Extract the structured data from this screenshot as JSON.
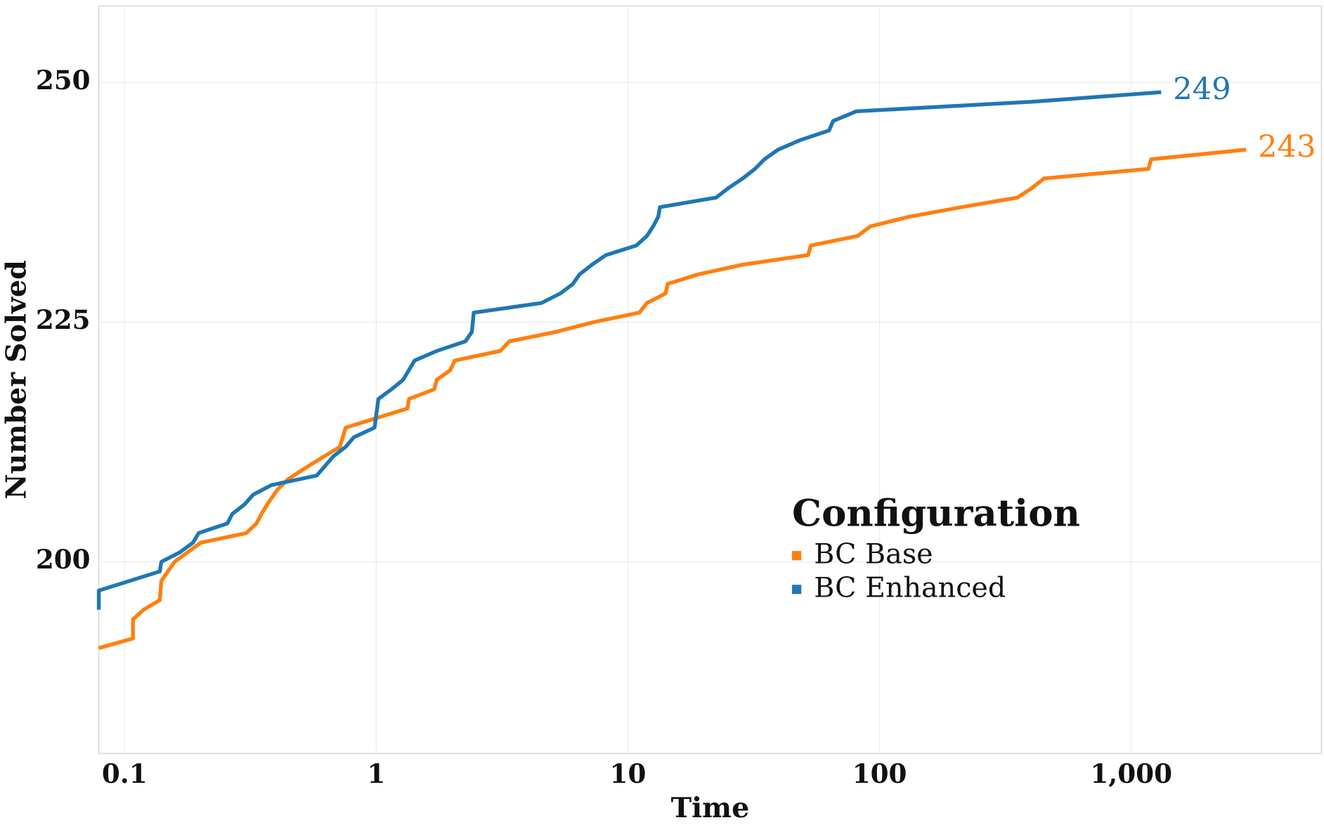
{
  "chart_data": {
    "type": "line",
    "x_label": "Time",
    "y_label": "Number Solved",
    "log_x": true,
    "grid": true,
    "xlim": [
      0.079,
      5700
    ],
    "ylim": [
      180,
      258
    ],
    "xticks": [
      0.1,
      1,
      10,
      100,
      {
        "value": 1000,
        "label": "1,000"
      }
    ],
    "yticks": [
      200,
      225,
      250
    ],
    "legend": {
      "title": "Configuration",
      "position": "right"
    },
    "end_labels": true,
    "series": [
      {
        "name": "BC Base",
        "color": "#ff7f0e",
        "x": [
          0.079,
          0.108,
          0.108,
          0.119,
          0.138,
          0.14,
          0.158,
          0.201,
          0.305,
          0.334,
          0.35,
          0.369,
          0.404,
          0.445,
          0.538,
          0.717,
          0.756,
          1.33,
          1.35,
          1.7,
          1.74,
          1.97,
          2.05,
          3.11,
          3.38,
          5.2,
          7.3,
          11.1,
          11.9,
          14.1,
          14.4,
          19.1,
          28.6,
          52,
          53.3,
          81.9,
          91.9,
          131,
          211,
          353,
          403,
          451,
          1170,
          1200,
          2860
        ],
        "values": [
          191,
          192,
          194,
          195,
          196,
          198,
          200,
          202,
          203,
          204,
          205,
          206,
          207.5,
          208.6,
          210,
          212,
          214,
          216,
          217,
          218,
          219,
          220,
          221,
          222,
          223,
          224,
          225,
          226,
          227,
          228,
          229,
          230,
          231,
          232,
          233,
          234,
          235,
          236,
          237,
          238,
          239,
          240,
          241,
          242,
          243
        ]
      },
      {
        "name": "BC Enhanced",
        "color": "#1f77b4",
        "x": [
          0.079,
          0.079,
          0.138,
          0.14,
          0.166,
          0.187,
          0.197,
          0.256,
          0.268,
          0.3,
          0.324,
          0.383,
          0.58,
          0.626,
          0.675,
          0.756,
          0.815,
          0.985,
          1.02,
          1.15,
          1.28,
          1.42,
          1.74,
          2.26,
          2.4,
          2.44,
          4.53,
          5.39,
          6.05,
          6.43,
          7.2,
          8.17,
          10.8,
          11.9,
          12.6,
          13.2,
          13.4,
          22.4,
          25.1,
          28.6,
          32,
          34.9,
          39.5,
          48.4,
          63,
          65.4,
          80.8,
          403,
          1315
        ],
        "values": [
          195,
          197,
          199,
          200,
          201,
          202,
          203,
          204,
          205,
          206,
          207,
          208,
          209,
          210,
          211,
          212,
          213,
          214,
          217,
          218,
          219,
          221,
          222,
          223,
          224,
          226,
          227,
          228,
          229,
          230,
          231,
          232,
          233,
          234,
          235,
          236,
          237,
          238,
          239,
          240,
          241,
          242,
          243,
          244,
          245,
          246,
          247,
          248,
          249
        ]
      }
    ]
  }
}
